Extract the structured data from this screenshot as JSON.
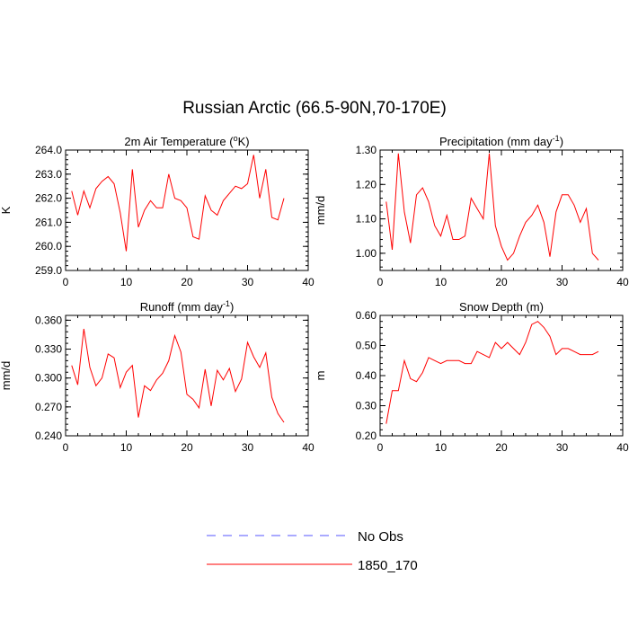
{
  "title": "Russian Arctic (66.5-90N,70-170E)",
  "legend": {
    "placement": "bottom-center",
    "entries": [
      {
        "label": "No Obs",
        "color": "#5555ff",
        "style": "dashed"
      },
      {
        "label": "1850_170",
        "color": "#ff0000",
        "style": "solid"
      }
    ]
  },
  "chart_data": [
    {
      "type": "line",
      "title_parts": [
        "2m Air Temperature (",
        "o",
        "K)"
      ],
      "ylabel": "K",
      "xlim": [
        0,
        40
      ],
      "ylim": [
        259.0,
        264.0
      ],
      "xticks": [
        0,
        10,
        20,
        30,
        40
      ],
      "yticks": [
        259.0,
        260.0,
        261.0,
        262.0,
        263.0,
        264.0
      ],
      "ytick_labels": [
        "259.0",
        "260.0",
        "261.0",
        "262.0",
        "263.0",
        "264.0"
      ],
      "color": "#ff0000",
      "series": [
        {
          "name": "1850_170",
          "x": [
            1,
            2,
            3,
            4,
            5,
            6,
            7,
            8,
            9,
            10,
            11,
            12,
            13,
            14,
            15,
            16,
            17,
            18,
            19,
            20,
            21,
            22,
            23,
            24,
            25,
            26,
            27,
            28,
            29,
            30,
            31,
            32,
            33,
            34,
            35,
            36
          ],
          "y": [
            262.3,
            261.3,
            262.3,
            261.6,
            262.4,
            262.7,
            262.9,
            262.6,
            261.4,
            259.8,
            263.2,
            260.8,
            261.5,
            261.9,
            261.6,
            261.6,
            263.0,
            262.0,
            261.9,
            261.6,
            260.4,
            260.3,
            262.1,
            261.5,
            261.3,
            261.9,
            262.2,
            262.5,
            262.4,
            262.6,
            263.8,
            262.0,
            263.2,
            261.2,
            261.1,
            262.0
          ]
        }
      ]
    },
    {
      "type": "line",
      "title_parts": [
        "Precipitation (mm day",
        "-1",
        ")"
      ],
      "ylabel": "mm/d",
      "xlim": [
        0,
        40
      ],
      "ylim": [
        0.95,
        1.3
      ],
      "xticks": [
        0,
        10,
        20,
        30,
        40
      ],
      "yticks": [
        1.0,
        1.1,
        1.2,
        1.3
      ],
      "ytick_labels": [
        "1.00",
        "1.10",
        "1.20",
        "1.30"
      ],
      "color": "#ff0000",
      "series": [
        {
          "name": "1850_170",
          "x": [
            1,
            2,
            3,
            4,
            5,
            6,
            7,
            8,
            9,
            10,
            11,
            12,
            13,
            14,
            15,
            16,
            17,
            18,
            19,
            20,
            21,
            22,
            23,
            24,
            25,
            26,
            27,
            28,
            29,
            30,
            31,
            32,
            33,
            34,
            35,
            36
          ],
          "y": [
            1.15,
            1.01,
            1.29,
            1.12,
            1.03,
            1.17,
            1.19,
            1.15,
            1.08,
            1.05,
            1.11,
            1.04,
            1.04,
            1.05,
            1.16,
            1.13,
            1.1,
            1.29,
            1.08,
            1.02,
            0.98,
            1.0,
            1.05,
            1.09,
            1.11,
            1.14,
            1.09,
            0.99,
            1.12,
            1.17,
            1.17,
            1.14,
            1.09,
            1.13,
            1.0,
            0.98
          ]
        }
      ]
    },
    {
      "type": "line",
      "title_parts": [
        "Runoff (mm day",
        "-1",
        ")"
      ],
      "ylabel": "mm/d",
      "xlim": [
        0,
        40
      ],
      "ylim": [
        0.24,
        0.365
      ],
      "xticks": [
        0,
        10,
        20,
        30,
        40
      ],
      "yticks": [
        0.24,
        0.27,
        0.3,
        0.33,
        0.36
      ],
      "ytick_labels": [
        "0.240",
        "0.270",
        "0.300",
        "0.330",
        "0.360"
      ],
      "color": "#ff0000",
      "series": [
        {
          "name": "1850_170",
          "x": [
            1,
            2,
            3,
            4,
            5,
            6,
            7,
            8,
            9,
            10,
            11,
            12,
            13,
            14,
            15,
            16,
            17,
            18,
            19,
            20,
            21,
            22,
            23,
            24,
            25,
            26,
            27,
            28,
            29,
            30,
            31,
            32,
            33,
            34,
            35,
            36
          ],
          "y": [
            0.313,
            0.293,
            0.351,
            0.311,
            0.292,
            0.3,
            0.325,
            0.321,
            0.29,
            0.306,
            0.313,
            0.259,
            0.292,
            0.287,
            0.298,
            0.305,
            0.318,
            0.344,
            0.327,
            0.283,
            0.278,
            0.269,
            0.309,
            0.271,
            0.308,
            0.298,
            0.31,
            0.286,
            0.299,
            0.337,
            0.322,
            0.311,
            0.326,
            0.28,
            0.263,
            0.254
          ]
        }
      ]
    },
    {
      "type": "line",
      "title_parts": [
        "Snow Depth (m)"
      ],
      "ylabel": "m",
      "xlim": [
        0,
        40
      ],
      "ylim": [
        0.2,
        0.6
      ],
      "xticks": [
        0,
        10,
        20,
        30,
        40
      ],
      "yticks": [
        0.2,
        0.3,
        0.4,
        0.5,
        0.6
      ],
      "ytick_labels": [
        "0.20",
        "0.30",
        "0.40",
        "0.50",
        "0.60"
      ],
      "color": "#ff0000",
      "series": [
        {
          "name": "1850_170",
          "x": [
            1,
            2,
            3,
            4,
            5,
            6,
            7,
            8,
            9,
            10,
            11,
            12,
            13,
            14,
            15,
            16,
            17,
            18,
            19,
            20,
            21,
            22,
            23,
            24,
            25,
            26,
            27,
            28,
            29,
            30,
            31,
            32,
            33,
            34,
            35,
            36
          ],
          "y": [
            0.24,
            0.35,
            0.35,
            0.45,
            0.39,
            0.38,
            0.41,
            0.46,
            0.45,
            0.44,
            0.45,
            0.45,
            0.45,
            0.44,
            0.44,
            0.48,
            0.47,
            0.46,
            0.51,
            0.49,
            0.51,
            0.49,
            0.47,
            0.51,
            0.57,
            0.58,
            0.56,
            0.53,
            0.47,
            0.49,
            0.49,
            0.48,
            0.47,
            0.47,
            0.47,
            0.48
          ]
        }
      ]
    }
  ]
}
